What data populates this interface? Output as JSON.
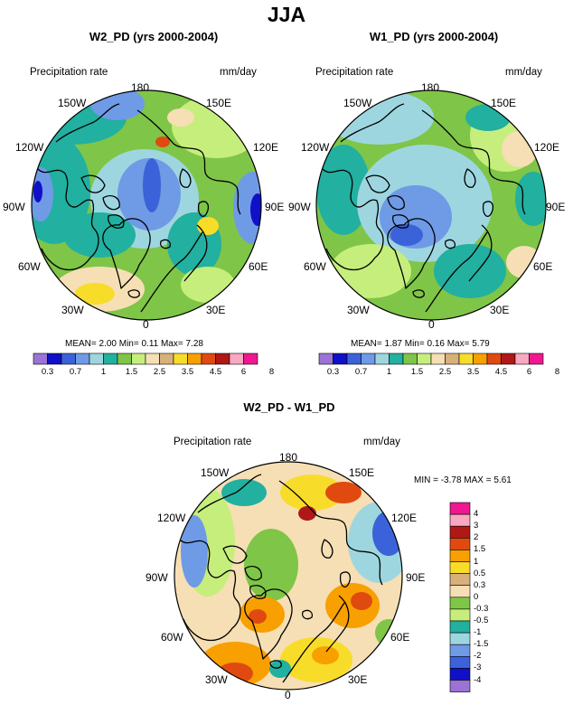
{
  "main_title": "JJA",
  "panels": [
    {
      "title": "W2_PD (yrs 2000-2004)",
      "left_label": "Precipitation rate",
      "right_label": "mm/day",
      "lon_labels": {
        "top": "180",
        "top_left": "150W",
        "top_right": "150E",
        "left_upper": "120W",
        "right_upper": "120E",
        "left": "90W",
        "right": "90E",
        "left_lower": "60W",
        "right_lower": "60E",
        "bottom_left": "30W",
        "bottom_right": "30E",
        "bottom": "0"
      },
      "stats": "MEAN=  2.00  Min=   0.11  Max=   7.28",
      "mean": 2.0,
      "min": 0.11,
      "max": 7.28
    },
    {
      "title": "W1_PD (yrs 2000-2004)",
      "left_label": "Precipitation rate",
      "right_label": "mm/day",
      "lon_labels": {
        "top": "180",
        "top_left": "150W",
        "top_right": "150E",
        "left_upper": "120W",
        "right_upper": "120E",
        "left": "90W",
        "right": "90E",
        "left_lower": "60W",
        "right_lower": "60E",
        "bottom_left": "30W",
        "bottom_right": "30E",
        "bottom": "0"
      },
      "stats": "MEAN=  1.87  Min=   0.16  Max=   5.79",
      "mean": 1.87,
      "min": 0.16,
      "max": 5.79
    },
    {
      "title": "W2_PD - W1_PD",
      "left_label": "Precipitation rate",
      "right_label": "mm/day",
      "lon_labels": {
        "top": "180",
        "top_left": "150W",
        "top_right": "150E",
        "left_upper": "120W",
        "right_upper": "120E",
        "left": "90W",
        "right": "90E",
        "left_lower": "60W",
        "right_lower": "60E",
        "bottom_left": "30W",
        "bottom_right": "30E",
        "bottom": "0"
      },
      "stats": "MIN =   -3.78  MAX =    5.61",
      "min": -3.78,
      "max": 5.61
    }
  ],
  "colorbar_precip": {
    "labels": [
      "0.3",
      "0.7",
      "1",
      "1.5",
      "2.5",
      "3.5",
      "4.5",
      "6",
      "8"
    ],
    "colors": [
      "#9b73d6",
      "#1010c8",
      "#3b62d8",
      "#6f9ae6",
      "#9ed6e0",
      "#22b0a0",
      "#7fc548",
      "#c6ee7c",
      "#f6dfb4",
      "#d8b07a",
      "#f8dc2a",
      "#f8a000",
      "#e04a10",
      "#b01818",
      "#f8a8c0",
      "#f01890"
    ]
  },
  "colorbar_diff": {
    "labels": [
      "4",
      "3",
      "2",
      "1.5",
      "1",
      "0.5",
      "0.3",
      "0",
      "-0.3",
      "-0.5",
      "-1",
      "-1.5",
      "-2",
      "-3",
      "-4"
    ],
    "colors": [
      "#f01890",
      "#f8a8c0",
      "#b01818",
      "#e04a10",
      "#f8a000",
      "#f8dc2a",
      "#d8b07a",
      "#f6dfb4",
      "#7fc548",
      "#c6ee7c",
      "#22b0a0",
      "#9ed6e0",
      "#6f9ae6",
      "#3b62d8",
      "#1010c8",
      "#9b73d6"
    ]
  }
}
